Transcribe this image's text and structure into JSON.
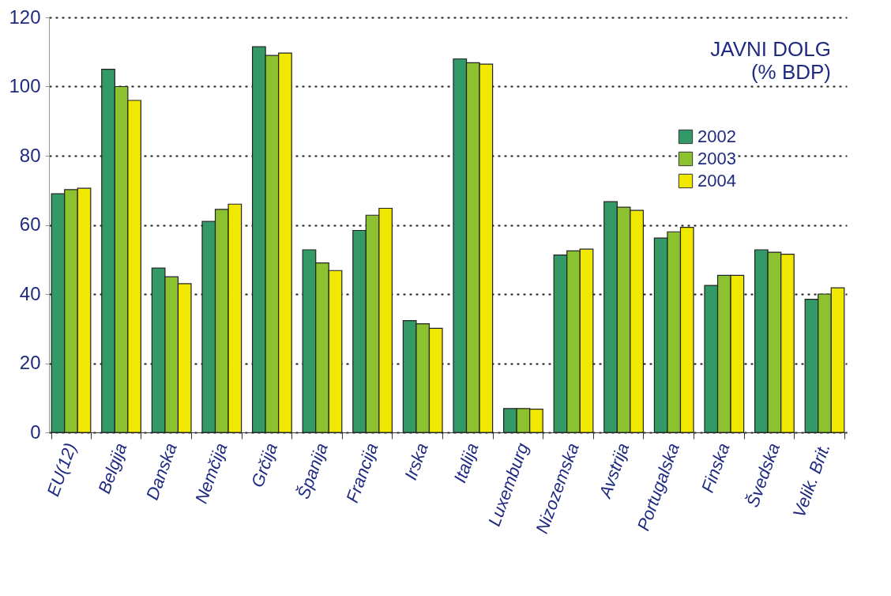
{
  "chart_data": {
    "type": "bar",
    "title": "JAVNI DOLG",
    "subtitle": "(% BDP)",
    "categories": [
      "EU(12)",
      "Belgija",
      "Danska",
      "Nemčija",
      "Grčija",
      "Španija",
      "Francija",
      "Irska",
      "Italija",
      "Luxemburg",
      "Nizozemska",
      "Avstrija",
      "Portugalska",
      "Finska",
      "Švedska",
      "Velik. Brit."
    ],
    "series": [
      {
        "name": "2002",
        "color": "#339966",
        "values": [
          69.0,
          105.0,
          47.5,
          61.0,
          111.5,
          52.8,
          58.4,
          32.3,
          108.0,
          6.9,
          51.3,
          66.7,
          56.2,
          42.5,
          52.8,
          38.5
        ]
      },
      {
        "name": "2003",
        "color": "#8cc230",
        "values": [
          70.2,
          100.0,
          45.0,
          64.5,
          109.0,
          49.0,
          62.8,
          31.4,
          106.9,
          6.9,
          52.5,
          65.1,
          58.0,
          45.4,
          52.1,
          40.0
        ]
      },
      {
        "name": "2004",
        "color": "#f0e800",
        "values": [
          70.6,
          96.0,
          43.0,
          66.0,
          109.7,
          46.8,
          64.8,
          30.1,
          106.5,
          6.7,
          53.0,
          64.2,
          59.3,
          45.4,
          51.5,
          41.8
        ]
      }
    ],
    "ylim": [
      0,
      120
    ],
    "yticks": [
      0,
      20,
      40,
      60,
      80,
      100,
      120
    ],
    "grid": "y",
    "legend": "top right"
  }
}
